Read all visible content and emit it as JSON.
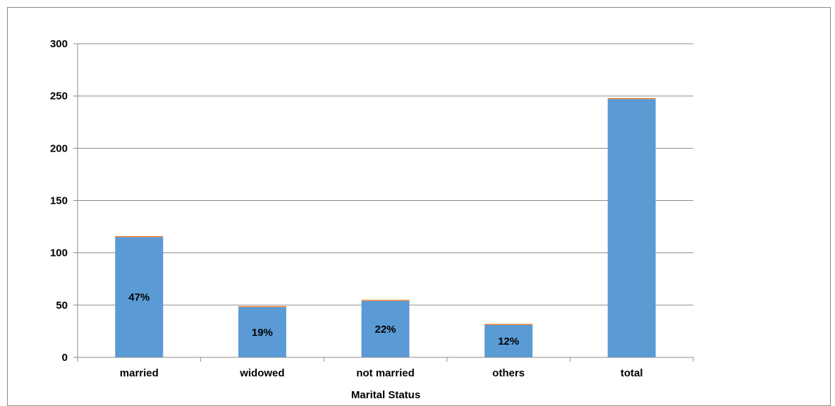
{
  "chart_data": {
    "type": "bar",
    "title": "",
    "xlabel": "Marital Status",
    "ylabel": "",
    "ylim": [
      0,
      300
    ],
    "yticks": [
      0,
      50,
      100,
      150,
      200,
      250,
      300
    ],
    "grid": true,
    "legend": "none",
    "categories": [
      "married",
      "widowed",
      "not married",
      "others",
      "total"
    ],
    "series": [
      {
        "values": [
          115,
          48,
          54,
          31,
          247
        ],
        "color": "#5b9bd5"
      },
      {
        "values": [
          1,
          1,
          1,
          1,
          1
        ],
        "color": "#ed7d31"
      }
    ],
    "data_labels": [
      "47%",
      "19%",
      "22%",
      "12%",
      ""
    ]
  }
}
